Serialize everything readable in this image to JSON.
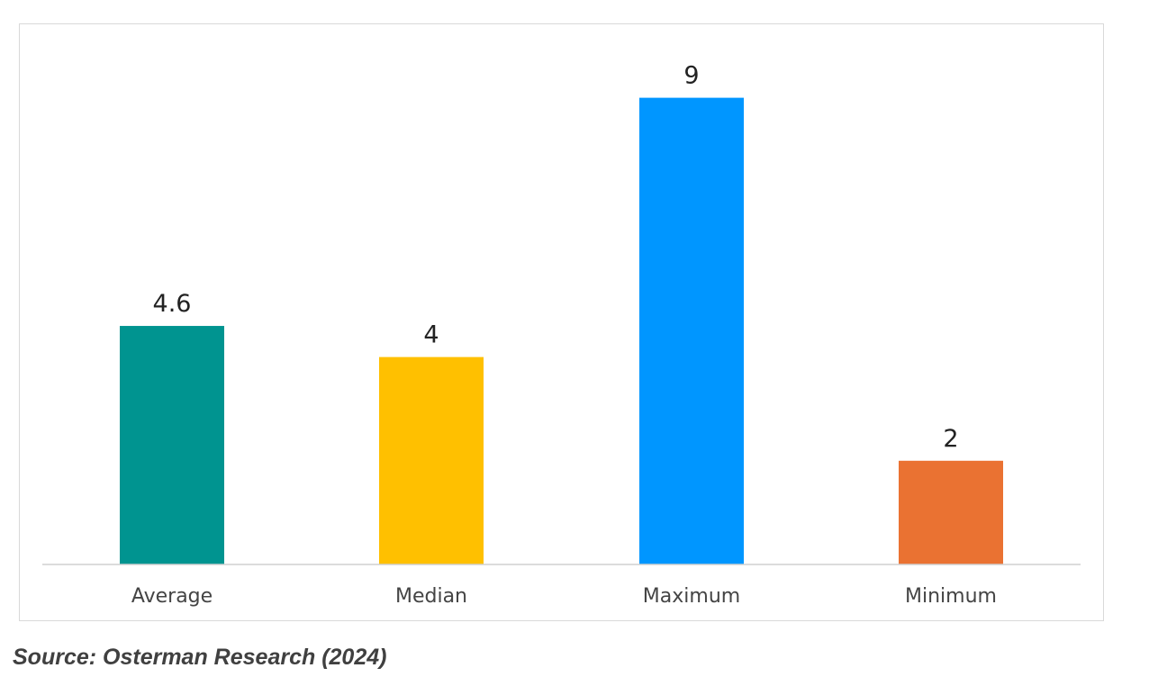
{
  "chart_data": {
    "type": "bar",
    "categories": [
      "Average",
      "Median",
      "Maximum",
      "Minimum"
    ],
    "values": [
      4.6,
      4,
      9,
      2
    ],
    "value_labels": [
      "4.6",
      "4",
      "9",
      "2"
    ],
    "colors": [
      "#009490",
      "#FFC000",
      "#0096FF",
      "#EA7232"
    ],
    "title": "",
    "xlabel": "",
    "ylabel": "",
    "ylim": [
      0,
      9
    ],
    "grid": false,
    "legend": "none"
  },
  "source": "Source: Osterman Research (2024)"
}
